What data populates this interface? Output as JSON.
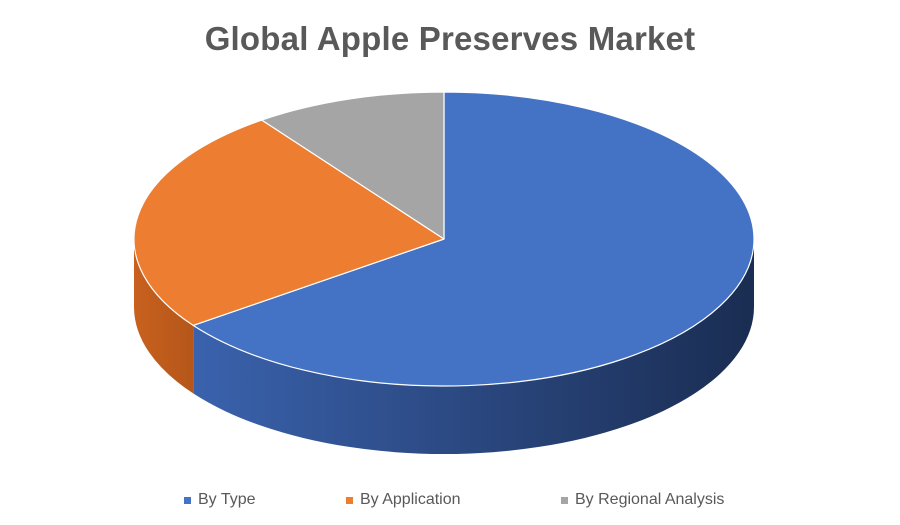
{
  "chart_data": {
    "type": "pie",
    "title": "Global Apple Preserves Market",
    "categories": [
      "By Type",
      "By Application",
      "By Regional Analysis"
    ],
    "values": [
      65,
      25,
      10
    ],
    "colors": [
      "#4472C4",
      "#ED7D31",
      "#A5A5A5"
    ],
    "style": "3d",
    "legend_position": "bottom"
  }
}
